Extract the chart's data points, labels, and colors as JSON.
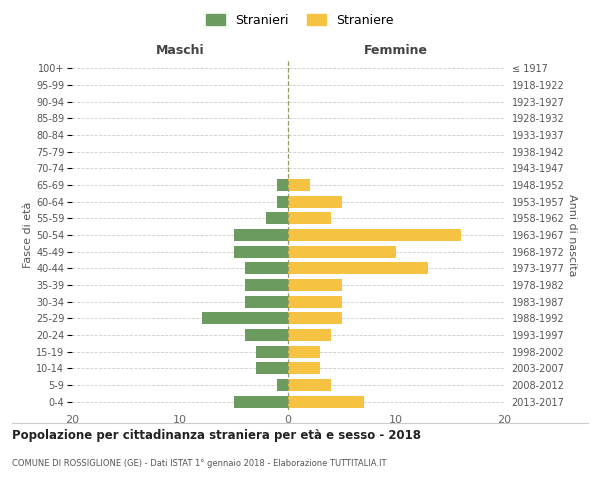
{
  "age_groups": [
    "100+",
    "95-99",
    "90-94",
    "85-89",
    "80-84",
    "75-79",
    "70-74",
    "65-69",
    "60-64",
    "55-59",
    "50-54",
    "45-49",
    "40-44",
    "35-39",
    "30-34",
    "25-29",
    "20-24",
    "15-19",
    "10-14",
    "5-9",
    "0-4"
  ],
  "birth_years": [
    "≤ 1917",
    "1918-1922",
    "1923-1927",
    "1928-1932",
    "1933-1937",
    "1938-1942",
    "1943-1947",
    "1948-1952",
    "1953-1957",
    "1958-1962",
    "1963-1967",
    "1968-1972",
    "1973-1977",
    "1978-1982",
    "1983-1987",
    "1988-1992",
    "1993-1997",
    "1998-2002",
    "2003-2007",
    "2008-2012",
    "2013-2017"
  ],
  "maschi": [
    0,
    0,
    0,
    0,
    0,
    0,
    0,
    1,
    1,
    2,
    5,
    5,
    4,
    4,
    4,
    8,
    4,
    3,
    3,
    1,
    5
  ],
  "femmine": [
    0,
    0,
    0,
    0,
    0,
    0,
    0,
    2,
    5,
    4,
    16,
    10,
    13,
    5,
    5,
    5,
    4,
    3,
    3,
    4,
    7
  ],
  "male_color": "#6b9b5e",
  "female_color": "#f5c242",
  "bg_color": "#ffffff",
  "grid_color": "#cccccc",
  "center_line_color": "#999966",
  "title_main": "Popolazione per cittadinanza straniera per età e sesso - 2018",
  "title_sub": "COMUNE DI ROSSIGLIONE (GE) - Dati ISTAT 1° gennaio 2018 - Elaborazione TUTTITALIA.IT",
  "xlabel_left": "Maschi",
  "xlabel_right": "Femmine",
  "ylabel_left": "Fasce di età",
  "ylabel_right": "Anni di nascita",
  "legend_male": "Stranieri",
  "legend_female": "Straniere",
  "xlim": 20
}
